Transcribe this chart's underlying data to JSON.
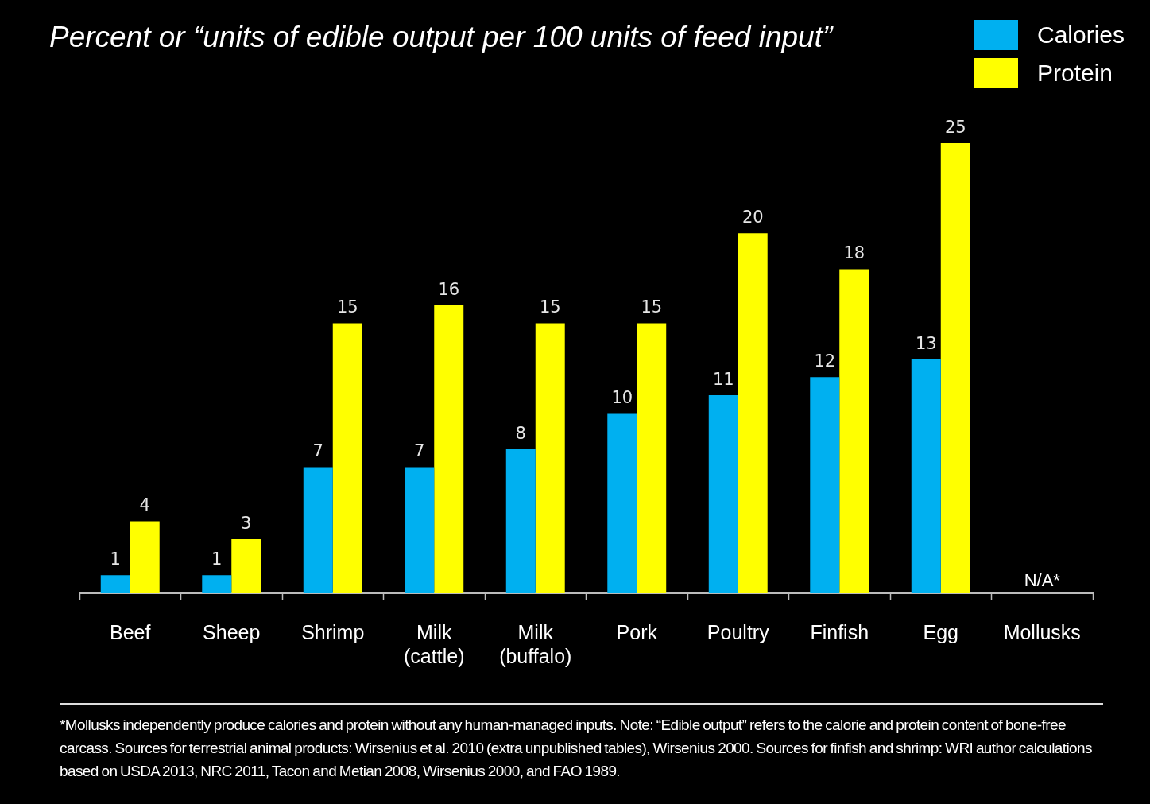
{
  "chart_data": {
    "type": "bar",
    "title": "Percent or “units of edible output per 100 units of feed input”",
    "categories": [
      "Beef",
      "Sheep",
      "Shrimp",
      "Milk\n(cattle)",
      "Milk\n(buffalo)",
      "Pork",
      "Poultry",
      "Finfish",
      "Egg",
      "Mollusks"
    ],
    "series": [
      {
        "name": "Calories",
        "color": "#00b0f0",
        "values": [
          1,
          1,
          7,
          7,
          8,
          10,
          11,
          12,
          13,
          null
        ]
      },
      {
        "name": "Protein",
        "color": "#ffff00",
        "values": [
          4,
          3,
          15,
          16,
          15,
          15,
          20,
          18,
          25,
          null
        ]
      }
    ],
    "data_labels": true,
    "legend": "top right",
    "grid": false,
    "annotations": [
      "N/A*",
      "*Mollusks independently produce calories and protein without any human-managed inputs. Note: “Edible output” refers to the calorie and protein content of bone-free carcass. Sources for terrestrial animal products: Wirsenius et al. 2010 (extra unpublished tables), Wirsenius 2000. Sources for finfish and shrimp: WRI author calculations based on USDA 2013, NRC 2011, Tacon and Metian 2008, Wirsenius 2000, and FAO 1989."
    ]
  }
}
